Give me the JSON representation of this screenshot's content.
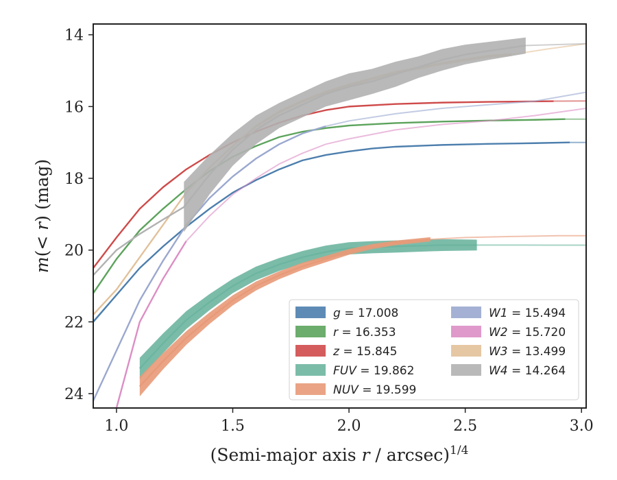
{
  "chart_data": {
    "type": "line",
    "title": "",
    "xlabel": "(Semi-major axis r / arcsec)^{1/4}",
    "xlabel_parts": {
      "pre": "(Semi-major axis ",
      "var": "r",
      "mid": " / arcsec)",
      "sup": "1/4"
    },
    "ylabel": "m(< r) (mag)",
    "ylabel_parts": {
      "pre": "m",
      "mid": "(< ",
      "var": "r",
      "post": ") (mag)"
    },
    "xlim": [
      0.9,
      3.02
    ],
    "ylim": [
      24.4,
      13.7
    ],
    "y_inverted": true,
    "xticks": [
      1.0,
      1.5,
      2.0,
      2.5,
      3.0
    ],
    "xtick_labels": [
      "1.0",
      "1.5",
      "2.0",
      "2.5",
      "3.0"
    ],
    "yticks": [
      14,
      16,
      18,
      20,
      22,
      24
    ],
    "ytick_labels": [
      "14",
      "16",
      "18",
      "20",
      "22",
      "24"
    ],
    "grid": false,
    "legend_position": "lower-right",
    "series": [
      {
        "name": "g = 17.008",
        "band": "g",
        "value": "17.008",
        "color": "#4c7ead",
        "extrap_from": 2.95,
        "x": [
          0.9,
          1.0,
          1.1,
          1.2,
          1.3,
          1.4,
          1.5,
          1.6,
          1.7,
          1.8,
          1.9,
          2.0,
          2.1,
          2.2,
          2.4,
          2.6,
          2.8,
          2.95,
          3.02
        ],
        "y": [
          22.0,
          21.25,
          20.5,
          19.9,
          19.35,
          18.85,
          18.4,
          18.05,
          17.75,
          17.5,
          17.35,
          17.25,
          17.17,
          17.12,
          17.07,
          17.04,
          17.02,
          17.0,
          17.0
        ],
        "width": [
          0.07,
          0.06,
          0.05,
          0.05,
          0.05,
          0.05,
          0.04,
          0.04,
          0.04,
          0.04,
          0.04,
          0.04,
          0.04,
          0.04,
          0.04,
          0.04,
          0.04,
          0.04,
          0.04
        ]
      },
      {
        "name": "r = 16.353",
        "band": "r",
        "value": "16.353",
        "color": "#5ca35c",
        "extrap_from": 2.93,
        "x": [
          0.9,
          1.0,
          1.1,
          1.2,
          1.3,
          1.4,
          1.5,
          1.6,
          1.7,
          1.8,
          1.9,
          2.0,
          2.2,
          2.4,
          2.6,
          2.8,
          2.93,
          3.02
        ],
        "y": [
          21.2,
          20.25,
          19.45,
          18.85,
          18.3,
          17.8,
          17.4,
          17.1,
          16.85,
          16.7,
          16.6,
          16.53,
          16.46,
          16.42,
          16.39,
          16.37,
          16.35,
          16.35
        ],
        "width": [
          0.06,
          0.05,
          0.05,
          0.04,
          0.04,
          0.04,
          0.04,
          0.04,
          0.04,
          0.04,
          0.04,
          0.04,
          0.04,
          0.04,
          0.04,
          0.04,
          0.04,
          0.04
        ]
      },
      {
        "name": "z = 15.845",
        "band": "z",
        "value": "15.845",
        "color": "#cf4a4a",
        "extrap_from": 2.88,
        "x": [
          0.9,
          1.0,
          1.1,
          1.2,
          1.3,
          1.4,
          1.5,
          1.6,
          1.7,
          1.8,
          1.9,
          2.0,
          2.2,
          2.4,
          2.6,
          2.88,
          3.02
        ],
        "y": [
          20.5,
          19.65,
          18.85,
          18.25,
          17.75,
          17.35,
          17.0,
          16.7,
          16.45,
          16.25,
          16.1,
          16.0,
          15.93,
          15.89,
          15.87,
          15.85,
          15.845
        ],
        "width": [
          0.06,
          0.05,
          0.05,
          0.04,
          0.04,
          0.04,
          0.04,
          0.04,
          0.04,
          0.04,
          0.04,
          0.04,
          0.04,
          0.04,
          0.04,
          0.04,
          0.04
        ]
      },
      {
        "name": "FUV = 19.862",
        "band": "FUV",
        "value": "19.862",
        "color": "#6db5a0",
        "extrap_from": 2.55,
        "x": [
          1.1,
          1.2,
          1.3,
          1.4,
          1.5,
          1.6,
          1.7,
          1.8,
          1.9,
          2.0,
          2.1,
          2.2,
          2.3,
          2.4,
          2.55,
          2.7,
          2.85,
          3.02
        ],
        "y": [
          23.3,
          22.6,
          21.95,
          21.45,
          21.0,
          20.65,
          20.4,
          20.2,
          20.05,
          19.95,
          19.92,
          19.9,
          19.88,
          19.86,
          19.86,
          19.86,
          19.862,
          19.862
        ],
        "width": [
          0.6,
          0.55,
          0.5,
          0.45,
          0.4,
          0.38,
          0.36,
          0.35,
          0.35,
          0.34,
          0.34,
          0.34,
          0.33,
          0.33,
          0.3,
          0.3,
          0.3,
          0.3
        ]
      },
      {
        "name": "NUV = 19.599",
        "band": "NUV",
        "value": "19.599",
        "color": "#e89a78",
        "extrap_from": 2.35,
        "x": [
          1.1,
          1.2,
          1.3,
          1.4,
          1.5,
          1.6,
          1.7,
          1.8,
          1.9,
          2.0,
          2.1,
          2.2,
          2.35,
          2.5,
          2.7,
          2.9,
          3.02
        ],
        "y": [
          23.8,
          23.1,
          22.45,
          21.9,
          21.4,
          21.0,
          20.7,
          20.45,
          20.25,
          20.05,
          19.9,
          19.8,
          19.7,
          19.65,
          19.62,
          19.6,
          19.599
        ],
        "width": [
          0.55,
          0.45,
          0.38,
          0.32,
          0.28,
          0.25,
          0.22,
          0.2,
          0.18,
          0.16,
          0.14,
          0.13,
          0.12,
          0.12,
          0.12,
          0.12,
          0.12
        ]
      },
      {
        "name": "W1 = 15.494",
        "band": "W1",
        "value": "15.494",
        "color": "#9aa8cf",
        "extrap_from": 1.9,
        "x": [
          0.9,
          1.0,
          1.1,
          1.2,
          1.3,
          1.4,
          1.5,
          1.6,
          1.7,
          1.8,
          1.9,
          2.0,
          2.2,
          2.4,
          2.6,
          2.8,
          3.02
        ],
        "y": [
          24.2,
          22.8,
          21.4,
          20.3,
          19.3,
          18.55,
          17.95,
          17.45,
          17.05,
          16.75,
          16.55,
          16.4,
          16.2,
          16.05,
          15.95,
          15.85,
          15.6
        ],
        "width": [
          0.04,
          0.04,
          0.04,
          0.04,
          0.04,
          0.04,
          0.04,
          0.04,
          0.04,
          0.04,
          0.04,
          0.04,
          0.04,
          0.04,
          0.04,
          0.04,
          0.04
        ]
      },
      {
        "name": "W2 = 15.720",
        "band": "W2",
        "value": "15.720",
        "color": "#dc8ec4",
        "extrap_from": 1.3,
        "x": [
          1.0,
          1.1,
          1.2,
          1.3,
          1.4,
          1.5,
          1.6,
          1.7,
          1.8,
          1.9,
          2.0,
          2.2,
          2.4,
          2.6,
          2.8,
          3.02
        ],
        "y": [
          24.4,
          22.0,
          20.8,
          19.75,
          19.05,
          18.45,
          18.0,
          17.6,
          17.3,
          17.05,
          16.9,
          16.65,
          16.5,
          16.4,
          16.25,
          16.05
        ],
        "width": [
          0.04,
          0.04,
          0.04,
          0.08,
          0.08,
          0.08,
          0.07,
          0.07,
          0.07,
          0.07,
          0.07,
          0.07,
          0.07,
          0.07,
          0.07,
          0.07
        ]
      },
      {
        "name": "W3 = 13.499",
        "band": "W3",
        "value": "13.499",
        "color": "#e2c19a",
        "extrap_from": 2.7,
        "x": [
          0.9,
          1.0,
          1.1,
          1.2,
          1.3,
          1.4,
          1.5,
          1.6,
          1.7,
          1.8,
          1.9,
          2.0,
          2.2,
          2.4,
          2.6,
          2.7,
          2.85,
          3.02
        ],
        "y": [
          21.8,
          21.1,
          20.2,
          19.3,
          18.4,
          17.7,
          17.1,
          16.55,
          16.15,
          15.85,
          15.6,
          15.4,
          15.05,
          14.8,
          14.6,
          14.55,
          14.4,
          14.25
        ],
        "width": [
          0.04,
          0.04,
          0.04,
          0.04,
          0.04,
          0.04,
          0.06,
          0.08,
          0.08,
          0.08,
          0.08,
          0.08,
          0.08,
          0.08,
          0.08,
          0.08,
          0.06,
          0.06
        ]
      },
      {
        "name": "W4 = 14.264",
        "band": "W4",
        "value": "14.264",
        "color": "#b1b1b1",
        "extrap_from": 2.76,
        "x": [
          0.9,
          1.0,
          1.1,
          1.2,
          1.29,
          1.4,
          1.5,
          1.6,
          1.7,
          1.8,
          1.9,
          2.0,
          2.1,
          2.2,
          2.3,
          2.4,
          2.5,
          2.6,
          2.76,
          3.02
        ],
        "y": [
          20.7,
          20.0,
          19.55,
          19.15,
          18.8,
          17.9,
          17.2,
          16.65,
          16.25,
          15.95,
          15.65,
          15.45,
          15.3,
          15.1,
          14.9,
          14.7,
          14.55,
          14.45,
          14.3,
          14.25
        ],
        "width": [
          0.04,
          0.04,
          0.04,
          0.04,
          1.4,
          1.1,
          0.9,
          0.8,
          0.7,
          0.7,
          0.7,
          0.75,
          0.7,
          0.7,
          0.6,
          0.6,
          0.55,
          0.5,
          0.45,
          0.04
        ]
      }
    ]
  }
}
